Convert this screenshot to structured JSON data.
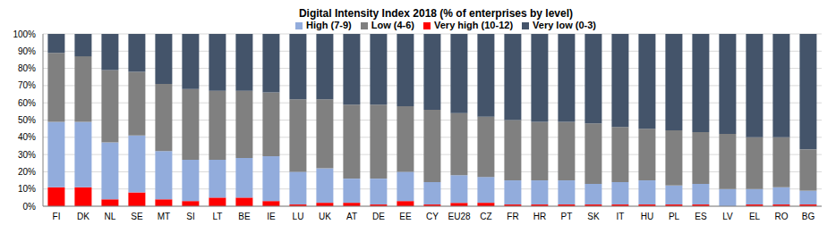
{
  "chart_data": {
    "type": "bar",
    "title": "Digital Intensity Index 2018 (% of enterprises by level)",
    "stacked": true,
    "grid": true,
    "legend": "top",
    "categories": [
      "FI",
      "DK",
      "NL",
      "SE",
      "MT",
      "SI",
      "LT",
      "BE",
      "IE",
      "LU",
      "UK",
      "AT",
      "DE",
      "EE",
      "CY",
      "EU28",
      "CZ",
      "FR",
      "HR",
      "PT",
      "SK",
      "IT",
      "HU",
      "PL",
      "ES",
      "LV",
      "EL",
      "RO",
      "BG"
    ],
    "series": [
      {
        "name": "Very high (10-12)",
        "color": "#ff0000",
        "values": [
          11,
          11,
          4,
          8,
          4,
          3,
          5,
          5,
          3,
          1,
          2,
          2,
          1,
          3,
          1,
          2,
          2,
          1,
          1,
          1,
          1,
          1,
          1,
          1,
          1,
          0,
          1,
          1,
          1
        ]
      },
      {
        "name": "High (7-9)",
        "color": "#92acdc",
        "values": [
          38,
          38,
          33,
          33,
          28,
          24,
          22,
          23,
          26,
          19,
          20,
          14,
          15,
          17,
          13,
          16,
          15,
          14,
          14,
          14,
          12,
          13,
          14,
          11,
          12,
          10,
          9,
          10,
          8
        ]
      },
      {
        "name": "Low (4-6)",
        "color": "#808080",
        "values": [
          40,
          38,
          42,
          37,
          39,
          41,
          40,
          39,
          37,
          42,
          40,
          43,
          43,
          38,
          42,
          36,
          35,
          35,
          34,
          34,
          35,
          32,
          30,
          32,
          30,
          32,
          30,
          29,
          24
        ]
      },
      {
        "name": "Very low (0-3)",
        "color": "#44546a",
        "values": [
          11,
          13,
          21,
          22,
          29,
          32,
          33,
          33,
          34,
          38,
          38,
          41,
          41,
          42,
          44,
          46,
          48,
          50,
          51,
          51,
          52,
          54,
          55,
          56,
          57,
          58,
          60,
          60,
          67
        ]
      }
    ],
    "ylim": [
      0,
      100
    ],
    "yticks": [
      {
        "value": 0,
        "label": "0%"
      },
      {
        "value": 10,
        "label": "10%"
      },
      {
        "value": 20,
        "label": "20%"
      },
      {
        "value": 30,
        "label": "30%"
      },
      {
        "value": 40,
        "label": "40%"
      },
      {
        "value": 50,
        "label": "50%"
      },
      {
        "value": 60,
        "label": "60%"
      },
      {
        "value": 70,
        "label": "70%"
      },
      {
        "value": 80,
        "label": "80%"
      },
      {
        "value": 90,
        "label": "90%"
      },
      {
        "value": 100,
        "label": "100%"
      }
    ]
  }
}
